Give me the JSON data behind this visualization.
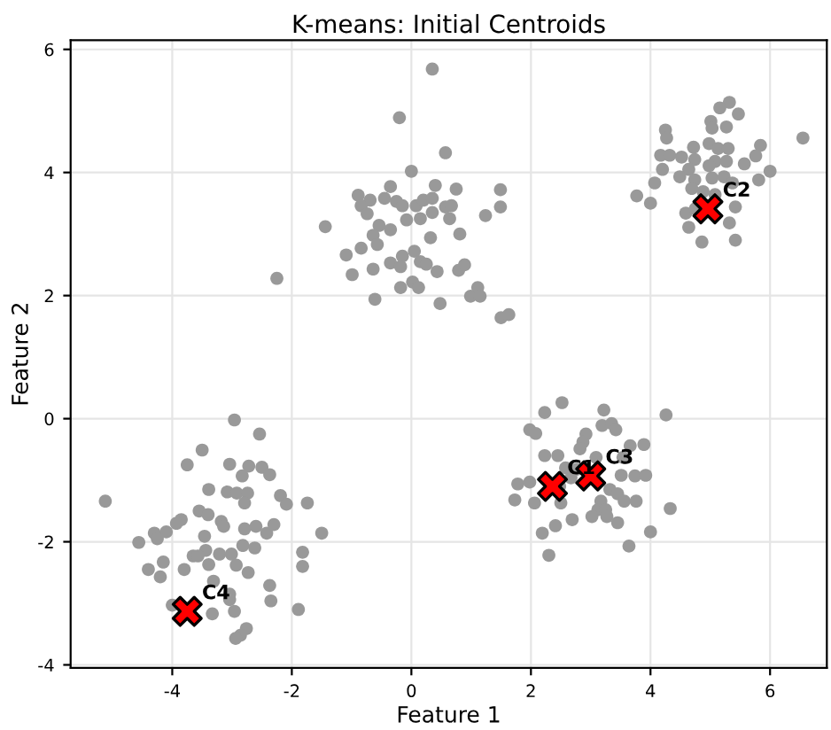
{
  "chart_data": {
    "type": "scatter",
    "title": "K-means: Initial Centroids",
    "xlabel": "Feature 1",
    "ylabel": "Feature 2",
    "xlim": [
      -5.7,
      6.95
    ],
    "ylim": [
      -4.05,
      6.15
    ],
    "xticks": [
      -4,
      -2,
      0,
      2,
      4,
      6
    ],
    "yticks": [
      -4,
      -2,
      0,
      2,
      4,
      6
    ],
    "grid": true,
    "series": [
      {
        "color": "#999999",
        "marker": "circle",
        "x": [
          0.35,
          -0.2,
          0.57,
          0,
          -0.35,
          0.4,
          0.75,
          1.49,
          -0.89,
          -0.69,
          -0.45,
          -0.25,
          -0.15,
          -0.84,
          -0.74,
          0.08,
          0.2,
          0.35,
          0.57,
          0.67,
          0.35,
          0.15,
          -0.08,
          0.64,
          1.24,
          1.49,
          -1.44,
          -0.54,
          -0.35,
          -0.64,
          -0.57,
          0.32,
          0.81,
          -0.84,
          -1.09,
          -0.15,
          0.05,
          -0.35,
          -0.18,
          0.15,
          0.25,
          -0.64,
          -0.99,
          0.43,
          0.79,
          0.89,
          0.02,
          0.12,
          -0.18,
          -0.61,
          0.48,
          1.11,
          0.99,
          1.15,
          1.5,
          1.63,
          -2.25,
          5.32,
          5.16,
          5.47,
          5.01,
          5.03,
          5.27,
          4.25,
          4.27,
          6.55,
          4.98,
          4.72,
          5.13,
          5.3,
          5.84,
          4.17,
          4.32,
          4.52,
          4.74,
          5.08,
          5.27,
          5.76,
          4.2,
          4.64,
          4.98,
          5.57,
          6.0,
          4.49,
          4.74,
          5.03,
          5.23,
          5.37,
          5.81,
          4.07,
          3.77,
          4.0,
          4.69,
          4.88,
          5.08,
          5.42,
          4.59,
          4.75,
          5.32,
          4.64,
          4.86,
          5.42,
          2.52,
          2.23,
          3.22,
          3.19,
          3.35,
          3.42,
          4.26,
          1.98,
          2.08,
          2.92,
          2.87,
          2.82,
          3.66,
          3.89,
          2.23,
          2.45,
          3.09,
          3.54,
          2.58,
          2.77,
          2.67,
          2.48,
          3.51,
          3.74,
          3.92,
          1.78,
          1.98,
          1.73,
          2.06,
          2.5,
          3.32,
          3.45,
          3.56,
          3.76,
          3.17,
          3.12,
          3.25,
          3.02,
          3.27,
          4.33,
          2.69,
          2.41,
          3.45,
          2.19,
          4.0,
          3.64,
          2.3,
          -2.96,
          -2.54,
          -3.5,
          -3.75,
          -3.04,
          -2.72,
          -2.5,
          -2.37,
          -2.83,
          -3.39,
          -3.08,
          -2.92,
          -2.74,
          -2.79,
          -2.19,
          -2.09,
          -1.74,
          -5.12,
          -3.55,
          -3.4,
          -3.85,
          -3.93,
          -4.1,
          -4.3,
          -4.25,
          -4.56,
          -3.46,
          -3.18,
          -3.14,
          -2.79,
          -2.6,
          -2.42,
          -2.3,
          -1.5,
          -2.82,
          -2.62,
          -3.44,
          -3.65,
          -3.57,
          -3.21,
          -3.01,
          -1.82,
          -4.15,
          -4.4,
          -3.8,
          -3.39,
          -2.93,
          -2.73,
          -1.82,
          -4.2,
          -3.31,
          -2.37,
          -3.04,
          -3.04,
          -2.35,
          -4.0,
          -3.33,
          -2.96,
          -1.89,
          -2.76,
          -2.86,
          -2.94
        ],
        "values": [
          5.68,
          4.89,
          4.32,
          4.02,
          3.77,
          3.79,
          3.73,
          3.72,
          3.63,
          3.55,
          3.58,
          3.53,
          3.46,
          3.46,
          3.33,
          3.46,
          3.55,
          3.58,
          3.44,
          3.46,
          3.35,
          3.25,
          3.23,
          3.25,
          3.3,
          3.44,
          3.12,
          3.14,
          3.07,
          2.98,
          2.83,
          2.94,
          3.0,
          2.77,
          2.66,
          2.64,
          2.72,
          2.53,
          2.47,
          2.55,
          2.51,
          2.43,
          2.34,
          2.39,
          2.41,
          2.5,
          2.22,
          2.13,
          2.13,
          1.94,
          1.87,
          2.13,
          1.99,
          1.99,
          1.64,
          1.69,
          2.28,
          5.14,
          5.05,
          4.95,
          4.83,
          4.72,
          4.74,
          4.69,
          4.56,
          4.56,
          4.47,
          4.41,
          4.39,
          4.39,
          4.44,
          4.28,
          4.28,
          4.25,
          4.21,
          4.18,
          4.18,
          4.27,
          4.05,
          4.05,
          4.11,
          4.14,
          4.02,
          3.93,
          3.88,
          3.91,
          3.93,
          3.83,
          3.88,
          3.83,
          3.62,
          3.5,
          3.74,
          3.69,
          3.64,
          3.44,
          3.34,
          3.41,
          3.18,
          3.11,
          2.87,
          2.9,
          0.26,
          0.1,
          0.14,
          -0.11,
          -0.08,
          -0.18,
          0.06,
          -0.18,
          -0.24,
          -0.25,
          -0.38,
          -0.49,
          -0.44,
          -0.42,
          -0.6,
          -0.6,
          -0.63,
          -0.63,
          -0.8,
          -0.82,
          -0.96,
          -1.1,
          -0.92,
          -0.93,
          -0.92,
          -1.06,
          -1.03,
          -1.32,
          -1.37,
          -1.37,
          -1.15,
          -1.22,
          -1.34,
          -1.34,
          -1.34,
          -1.48,
          -1.48,
          -1.59,
          -1.59,
          -1.46,
          -1.64,
          -1.74,
          -1.69,
          -1.86,
          -1.84,
          -2.07,
          -2.22,
          -0.02,
          -0.25,
          -0.51,
          -0.75,
          -0.74,
          -0.77,
          -0.79,
          -0.91,
          -0.93,
          -1.15,
          -1.19,
          -1.21,
          -1.21,
          -1.37,
          -1.25,
          -1.39,
          -1.37,
          -1.34,
          -1.5,
          -1.56,
          -1.64,
          -1.7,
          -1.84,
          -1.86,
          -1.95,
          -2.01,
          -1.91,
          -1.67,
          -1.75,
          -1.79,
          -1.75,
          -1.86,
          -1.72,
          -1.86,
          -2.06,
          -2.1,
          -2.14,
          -2.23,
          -2.23,
          -2.2,
          -2.2,
          -2.17,
          -2.33,
          -2.45,
          -2.45,
          -2.37,
          -2.38,
          -2.5,
          -2.4,
          -2.57,
          -2.64,
          -2.71,
          -2.85,
          -2.94,
          -2.96,
          -3.03,
          -3.17,
          -3.13,
          -3.1,
          -3.41,
          -3.52,
          -3.57
        ]
      },
      {
        "color": "#ff0000",
        "marker": "cross",
        "x": [
          2.36,
          4.96,
          3.0,
          -3.75
        ],
        "values": [
          -1.1,
          3.41,
          -0.93,
          -3.13
        ]
      }
    ],
    "annotations": [
      {
        "text": "C1",
        "x": 2.36,
        "y": -1.1
      },
      {
        "text": "C2",
        "x": 4.96,
        "y": 3.41
      },
      {
        "text": "C3",
        "x": 3.0,
        "y": -0.93
      },
      {
        "text": "C4",
        "x": -3.75,
        "y": -3.13
      }
    ]
  }
}
